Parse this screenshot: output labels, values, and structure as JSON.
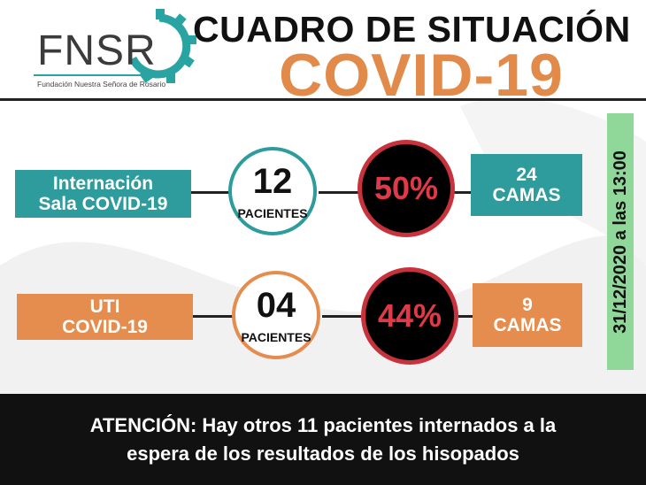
{
  "logo": {
    "text": "FNSR",
    "subtitle": "Fundación Nuestra Señora de Rosario",
    "color": "#2aa3a3"
  },
  "title": {
    "line1": "CUADRO DE SITUACIÓN",
    "line2": "COVID-19",
    "accent_color": "#e28a4a"
  },
  "rows": [
    {
      "label_line1": "Internación",
      "label_line2": "Sala COVID-19",
      "patients": "12",
      "patients_label": "PACIENTES",
      "percent": "50%",
      "beds_count": "24",
      "beds_label": "CAMAS",
      "color": "#2e9c9c"
    },
    {
      "label_line1": "UTI",
      "label_line2": "COVID-19",
      "patients": "04",
      "patients_label": "PACIENTES",
      "percent": "44%",
      "beds_count": "9",
      "beds_label": "CAMAS",
      "color": "#e48d4e"
    }
  ],
  "date_stamp": "31/12/2020 a las 13:00",
  "footer": {
    "line1": "ATENCIÓN: Hay otros 11 pacientes internados a la",
    "line2": "espera de los resultados de los hisopados"
  }
}
